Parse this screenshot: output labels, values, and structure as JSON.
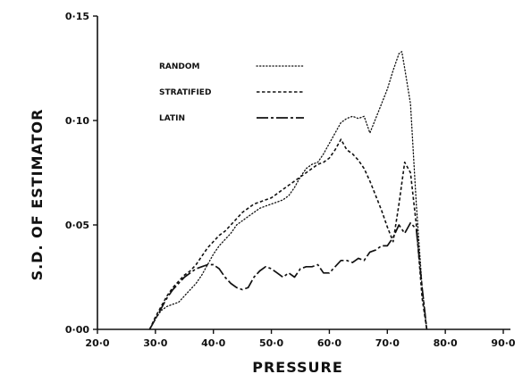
{
  "chart_data": {
    "type": "line",
    "title": "",
    "xlabel": "PRESSURE",
    "ylabel": "S.D. OF ESTIMATOR",
    "xlim": [
      20,
      90
    ],
    "ylim": [
      0,
      0.15
    ],
    "xticks": [
      "20·0",
      "30·0",
      "40·0",
      "50·0",
      "60·0",
      "70·0",
      "80·0",
      "90·0"
    ],
    "yticks": [
      "0·00",
      "0·05",
      "0·10",
      "0·15"
    ],
    "grid": false,
    "legend": "top-left",
    "series": [
      {
        "name": "RANDOM",
        "style": "dotted",
        "points": [
          [
            29.0,
            0.0
          ],
          [
            30.0,
            0.005
          ],
          [
            31.0,
            0.009
          ],
          [
            32.0,
            0.011
          ],
          [
            33.0,
            0.012
          ],
          [
            34.0,
            0.013
          ],
          [
            35.0,
            0.016
          ],
          [
            36.0,
            0.019
          ],
          [
            37.0,
            0.022
          ],
          [
            38.0,
            0.026
          ],
          [
            39.0,
            0.031
          ],
          [
            40.0,
            0.036
          ],
          [
            41.0,
            0.04
          ],
          [
            42.0,
            0.043
          ],
          [
            43.0,
            0.046
          ],
          [
            44.0,
            0.05
          ],
          [
            45.0,
            0.052
          ],
          [
            46.0,
            0.054
          ],
          [
            47.0,
            0.056
          ],
          [
            48.0,
            0.058
          ],
          [
            49.0,
            0.059
          ],
          [
            50.0,
            0.06
          ],
          [
            51.0,
            0.061
          ],
          [
            52.0,
            0.062
          ],
          [
            53.0,
            0.064
          ],
          [
            54.0,
            0.068
          ],
          [
            55.0,
            0.073
          ],
          [
            56.0,
            0.077
          ],
          [
            57.0,
            0.079
          ],
          [
            58.0,
            0.08
          ],
          [
            59.0,
            0.084
          ],
          [
            60.0,
            0.089
          ],
          [
            61.0,
            0.094
          ],
          [
            62.0,
            0.099
          ],
          [
            63.0,
            0.101
          ],
          [
            64.0,
            0.102
          ],
          [
            65.0,
            0.101
          ],
          [
            66.0,
            0.102
          ],
          [
            67.0,
            0.094
          ],
          [
            68.0,
            0.101
          ],
          [
            69.0,
            0.108
          ],
          [
            70.0,
            0.115
          ],
          [
            71.0,
            0.124
          ],
          [
            72.0,
            0.132
          ],
          [
            72.5,
            0.133
          ],
          [
            73.0,
            0.125
          ],
          [
            74.0,
            0.108
          ],
          [
            75.0,
            0.06
          ],
          [
            76.0,
            0.02
          ],
          [
            76.8,
            0.0
          ]
        ]
      },
      {
        "name": "STRATIFIED",
        "style": "dashed",
        "points": [
          [
            29.0,
            0.0
          ],
          [
            30.0,
            0.006
          ],
          [
            31.0,
            0.011
          ],
          [
            32.0,
            0.016
          ],
          [
            33.0,
            0.02
          ],
          [
            34.0,
            0.023
          ],
          [
            35.0,
            0.026
          ],
          [
            36.0,
            0.028
          ],
          [
            37.0,
            0.031
          ],
          [
            38.0,
            0.035
          ],
          [
            39.0,
            0.039
          ],
          [
            40.0,
            0.042
          ],
          [
            41.0,
            0.045
          ],
          [
            42.0,
            0.047
          ],
          [
            43.0,
            0.05
          ],
          [
            44.0,
            0.053
          ],
          [
            45.0,
            0.056
          ],
          [
            46.0,
            0.058
          ],
          [
            47.0,
            0.06
          ],
          [
            48.0,
            0.061
          ],
          [
            49.0,
            0.062
          ],
          [
            50.0,
            0.063
          ],
          [
            51.0,
            0.065
          ],
          [
            52.0,
            0.067
          ],
          [
            53.0,
            0.069
          ],
          [
            54.0,
            0.071
          ],
          [
            55.0,
            0.073
          ],
          [
            56.0,
            0.075
          ],
          [
            57.0,
            0.077
          ],
          [
            58.0,
            0.079
          ],
          [
            59.0,
            0.08
          ],
          [
            60.0,
            0.082
          ],
          [
            61.0,
            0.086
          ],
          [
            62.0,
            0.091
          ],
          [
            63.0,
            0.086
          ],
          [
            64.0,
            0.084
          ],
          [
            65.0,
            0.081
          ],
          [
            66.0,
            0.077
          ],
          [
            67.0,
            0.071
          ],
          [
            68.0,
            0.064
          ],
          [
            69.0,
            0.057
          ],
          [
            70.0,
            0.049
          ],
          [
            71.0,
            0.042
          ],
          [
            72.0,
            0.06
          ],
          [
            73.0,
            0.08
          ],
          [
            74.0,
            0.075
          ],
          [
            75.0,
            0.05
          ],
          [
            76.0,
            0.015
          ],
          [
            76.8,
            0.0
          ]
        ]
      },
      {
        "name": "LATIN",
        "style": "dashdot",
        "points": [
          [
            29.0,
            0.0
          ],
          [
            30.0,
            0.005
          ],
          [
            31.0,
            0.01
          ],
          [
            32.0,
            0.015
          ],
          [
            33.0,
            0.019
          ],
          [
            34.0,
            0.022
          ],
          [
            35.0,
            0.025
          ],
          [
            36.0,
            0.027
          ],
          [
            37.0,
            0.029
          ],
          [
            38.0,
            0.03
          ],
          [
            39.0,
            0.031
          ],
          [
            40.0,
            0.031
          ],
          [
            41.0,
            0.029
          ],
          [
            42.0,
            0.025
          ],
          [
            43.0,
            0.022
          ],
          [
            44.0,
            0.02
          ],
          [
            45.0,
            0.019
          ],
          [
            46.0,
            0.02
          ],
          [
            47.0,
            0.025
          ],
          [
            48.0,
            0.028
          ],
          [
            49.0,
            0.03
          ],
          [
            50.0,
            0.029
          ],
          [
            51.0,
            0.027
          ],
          [
            52.0,
            0.025
          ],
          [
            53.0,
            0.027
          ],
          [
            54.0,
            0.025
          ],
          [
            55.0,
            0.029
          ],
          [
            56.0,
            0.03
          ],
          [
            57.0,
            0.03
          ],
          [
            58.0,
            0.031
          ],
          [
            59.0,
            0.027
          ],
          [
            60.0,
            0.027
          ],
          [
            61.0,
            0.03
          ],
          [
            62.0,
            0.033
          ],
          [
            63.0,
            0.033
          ],
          [
            64.0,
            0.032
          ],
          [
            65.0,
            0.034
          ],
          [
            66.0,
            0.033
          ],
          [
            67.0,
            0.037
          ],
          [
            68.0,
            0.038
          ],
          [
            69.0,
            0.04
          ],
          [
            70.0,
            0.04
          ],
          [
            71.0,
            0.044
          ],
          [
            72.0,
            0.05
          ],
          [
            73.0,
            0.046
          ],
          [
            74.0,
            0.051
          ],
          [
            75.0,
            0.048
          ],
          [
            76.0,
            0.02
          ],
          [
            76.8,
            0.0
          ]
        ]
      }
    ]
  }
}
